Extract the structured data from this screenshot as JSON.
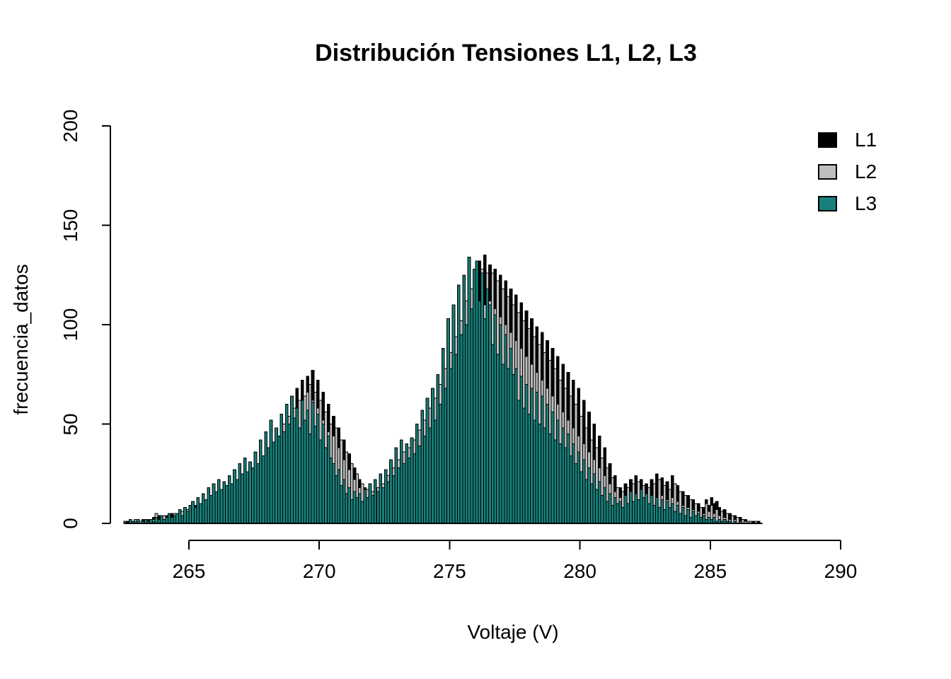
{
  "chart_data": {
    "type": "bar",
    "subtype": "overlaid-histograms",
    "title": "Distribución Tensiones L1, L2, L3",
    "xlabel": "Voltaje (V)",
    "ylabel": "frecuencia_datos",
    "xlim": [
      262.5,
      290
    ],
    "ylim": [
      0,
      200
    ],
    "x_ticks": [
      265,
      270,
      275,
      280,
      285,
      290
    ],
    "y_ticks": [
      0,
      50,
      100,
      150,
      200
    ],
    "grid": false,
    "legend_position": "top-right",
    "bin_start": 262.5,
    "bin_width": 0.1,
    "draw_order": [
      "L1",
      "L2",
      "L3"
    ],
    "legend": {
      "entries": [
        {
          "label": "L1",
          "color": "#000000"
        },
        {
          "label": "L2",
          "color": "#BEBEBE"
        },
        {
          "label": "L3",
          "color": "#17807A"
        }
      ]
    },
    "series": [
      {
        "name": "L1",
        "color": "#000000",
        "values": [
          1,
          1,
          2,
          1,
          2,
          1,
          1,
          2,
          1,
          2,
          2,
          3,
          2,
          4,
          3,
          2,
          4,
          3,
          5,
          4,
          4,
          6,
          5,
          7,
          5,
          8,
          6,
          9,
          7,
          10,
          10,
          8,
          13,
          10,
          15,
          11,
          17,
          12,
          16,
          14,
          16,
          13,
          19,
          15,
          22,
          17,
          25,
          19,
          28,
          21,
          28,
          23,
          33,
          26,
          38,
          30,
          43,
          33,
          48,
          37,
          50,
          40,
          56,
          45,
          62,
          50,
          68,
          54,
          72,
          58,
          74,
          60,
          77,
          63,
          72,
          58,
          66,
          52,
          60,
          46,
          54,
          42,
          48,
          36,
          42,
          30,
          35,
          25,
          28,
          20,
          22,
          15,
          18,
          13,
          16,
          11,
          18,
          13,
          21,
          15,
          23,
          17,
          27,
          20,
          31,
          23,
          35,
          26,
          38,
          29,
          40,
          32,
          45,
          36,
          50,
          40,
          56,
          44,
          62,
          48,
          68,
          54,
          76,
          60,
          84,
          67,
          92,
          74,
          100,
          81,
          108,
          88,
          116,
          94,
          124,
          101,
          132,
          108,
          135,
          112,
          130,
          106,
          128,
          104,
          125,
          100,
          122,
          98,
          118,
          95,
          115,
          92,
          111,
          89,
          107,
          85,
          103,
          82,
          99,
          79,
          96,
          76,
          92,
          73,
          88,
          70,
          84,
          66,
          80,
          63,
          76,
          60,
          72,
          56,
          68,
          52,
          62,
          47,
          56,
          42,
          50,
          38,
          44,
          32,
          38,
          27,
          30,
          21,
          24,
          16,
          18,
          12,
          20,
          14,
          22,
          15,
          24,
          17,
          22,
          16,
          20,
          14,
          22,
          15,
          25,
          17,
          23,
          16,
          21,
          15,
          24,
          16,
          19,
          13,
          16,
          11,
          14,
          9,
          12,
          8,
          10,
          6,
          8,
          12,
          9,
          13,
          10,
          11,
          8,
          6,
          7,
          4,
          5,
          3,
          4,
          2,
          3,
          2,
          2,
          1,
          1,
          1,
          0,
          1,
          0
        ]
      },
      {
        "name": "L2",
        "color": "#BEBEBE",
        "values": [
          1,
          0,
          1,
          1,
          2,
          1,
          1,
          1,
          2,
          1,
          2,
          2,
          5,
          2,
          3,
          4,
          3,
          4,
          3,
          5,
          4,
          5,
          6,
          5,
          7,
          6,
          8,
          7,
          9,
          8,
          9,
          11,
          10,
          13,
          11,
          14,
          12,
          15,
          13,
          16,
          14,
          17,
          15,
          19,
          16,
          21,
          18,
          23,
          19,
          25,
          24,
          28,
          25,
          31,
          27,
          34,
          29,
          38,
          32,
          42,
          44,
          50,
          46,
          54,
          48,
          58,
          50,
          62,
          52,
          64,
          66,
          70,
          62,
          66,
          58,
          62,
          52,
          56,
          46,
          50,
          44,
          48,
          38,
          42,
          32,
          36,
          27,
          30,
          22,
          25,
          18,
          20,
          15,
          17,
          13,
          16,
          14,
          18,
          15,
          20,
          18,
          24,
          20,
          28,
          22,
          32,
          25,
          36,
          27,
          38,
          34,
          42,
          37,
          47,
          40,
          52,
          44,
          58,
          47,
          63,
          58,
          70,
          62,
          78,
          67,
          86,
          72,
          94,
          77,
          102,
          96,
          112,
          100,
          118,
          105,
          124,
          108,
          128,
          110,
          126,
          112,
          126,
          108,
          122,
          104,
          118,
          100,
          114,
          96,
          110,
          92,
          106,
          88,
          102,
          84,
          98,
          80,
          94,
          76,
          90,
          72,
          86,
          68,
          82,
          64,
          78,
          60,
          72,
          56,
          68,
          52,
          64,
          48,
          60,
          44,
          54,
          40,
          48,
          36,
          42,
          32,
          38,
          28,
          33,
          24,
          28,
          20,
          23,
          16,
          18,
          13,
          16,
          11,
          18,
          12,
          20,
          14,
          21,
          15,
          19,
          14,
          18,
          12,
          20,
          13,
          22,
          14,
          19,
          12,
          17,
          13,
          20,
          11,
          16,
          9,
          14,
          8,
          12,
          7,
          10,
          6,
          8,
          5,
          10,
          6,
          9,
          5,
          7,
          4,
          6,
          3,
          5,
          2,
          4,
          2,
          3,
          1,
          2,
          1,
          1,
          1,
          0,
          1,
          0,
          0
        ]
      },
      {
        "name": "L3",
        "color": "#17807A",
        "values": [
          1,
          0,
          2,
          1,
          1,
          2,
          0,
          1,
          2,
          1,
          2,
          1,
          3,
          2,
          4,
          2,
          3,
          5,
          3,
          4,
          5,
          7,
          4,
          8,
          6,
          9,
          11,
          8,
          13,
          10,
          15,
          12,
          18,
          14,
          20,
          16,
          22,
          17,
          21,
          19,
          24,
          20,
          27,
          22,
          30,
          25,
          33,
          26,
          31,
          28,
          36,
          30,
          42,
          34,
          46,
          38,
          52,
          41,
          48,
          44,
          55,
          46,
          60,
          50,
          64,
          53,
          58,
          48,
          62,
          52,
          57,
          45,
          61,
          49,
          55,
          42,
          50,
          38,
          44,
          33,
          30,
          24,
          27,
          19,
          22,
          15,
          18,
          12,
          16,
          13,
          15,
          11,
          17,
          13,
          20,
          14,
          22,
          16,
          25,
          18,
          27,
          21,
          32,
          24,
          38,
          28,
          42,
          30,
          40,
          33,
          43,
          35,
          50,
          39,
          57,
          44,
          63,
          48,
          68,
          52,
          75,
          60,
          88,
          68,
          103,
          78,
          110,
          85,
          120,
          95,
          125,
          100,
          134,
          108,
          128,
          132,
          112,
          126,
          103,
          118,
          110,
          90,
          105,
          85,
          100,
          80,
          95,
          78,
          88,
          75,
          78,
          62,
          74,
          58,
          70,
          55,
          68,
          52,
          66,
          50,
          64,
          48,
          60,
          45,
          56,
          42,
          52,
          40,
          48,
          38,
          45,
          34,
          40,
          30,
          36,
          26,
          32,
          22,
          28,
          20,
          25,
          17,
          21,
          14,
          18,
          11,
          15,
          9,
          13,
          10,
          11,
          8,
          14,
          10,
          16,
          11,
          15,
          12,
          17,
          13,
          15,
          10,
          14,
          9,
          13,
          8,
          12,
          7,
          11,
          8,
          10,
          6,
          9,
          5,
          8,
          4,
          7,
          3,
          6,
          4,
          5,
          3,
          4,
          2,
          3,
          2,
          3,
          1,
          2,
          1,
          2,
          1,
          1,
          0,
          1,
          0,
          1,
          0,
          0,
          0,
          0,
          0,
          0,
          0,
          0
        ]
      }
    ]
  },
  "colors": {
    "background": "#FFFFFF",
    "axis": "#000000",
    "text": "#000000",
    "bar_border": "#000000"
  }
}
